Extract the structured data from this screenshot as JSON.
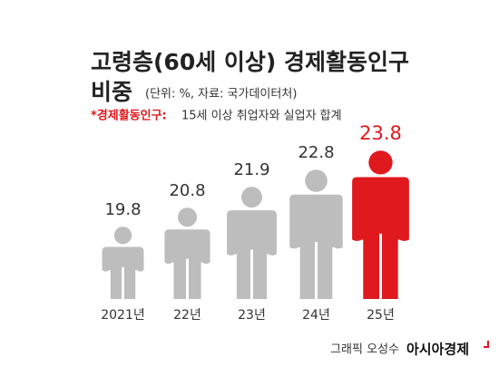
{
  "chart_data": {
    "type": "pictogram",
    "title": [
      "고령층(60세 이상) 경제활동인구",
      "비중"
    ],
    "subtitle": "(단위: %, 자료: 국가데이터처)",
    "note": {
      "term": "*경제활동인구:",
      "definition": "15세 이상 취업자와 실업자 합계"
    },
    "categories": [
      "2021년",
      "22년",
      "23년",
      "24년",
      "25년"
    ],
    "values": [
      19.8,
      20.8,
      21.9,
      22.8,
      23.8
    ],
    "colors": [
      "#bdbdbd",
      "#bdbdbd",
      "#bdbdbd",
      "#bdbdbd",
      "#e0191e"
    ],
    "ylim": [
      16,
      24
    ],
    "credit": {
      "graphic": "그래픽 오성수",
      "publisher": "아시아경제"
    }
  }
}
